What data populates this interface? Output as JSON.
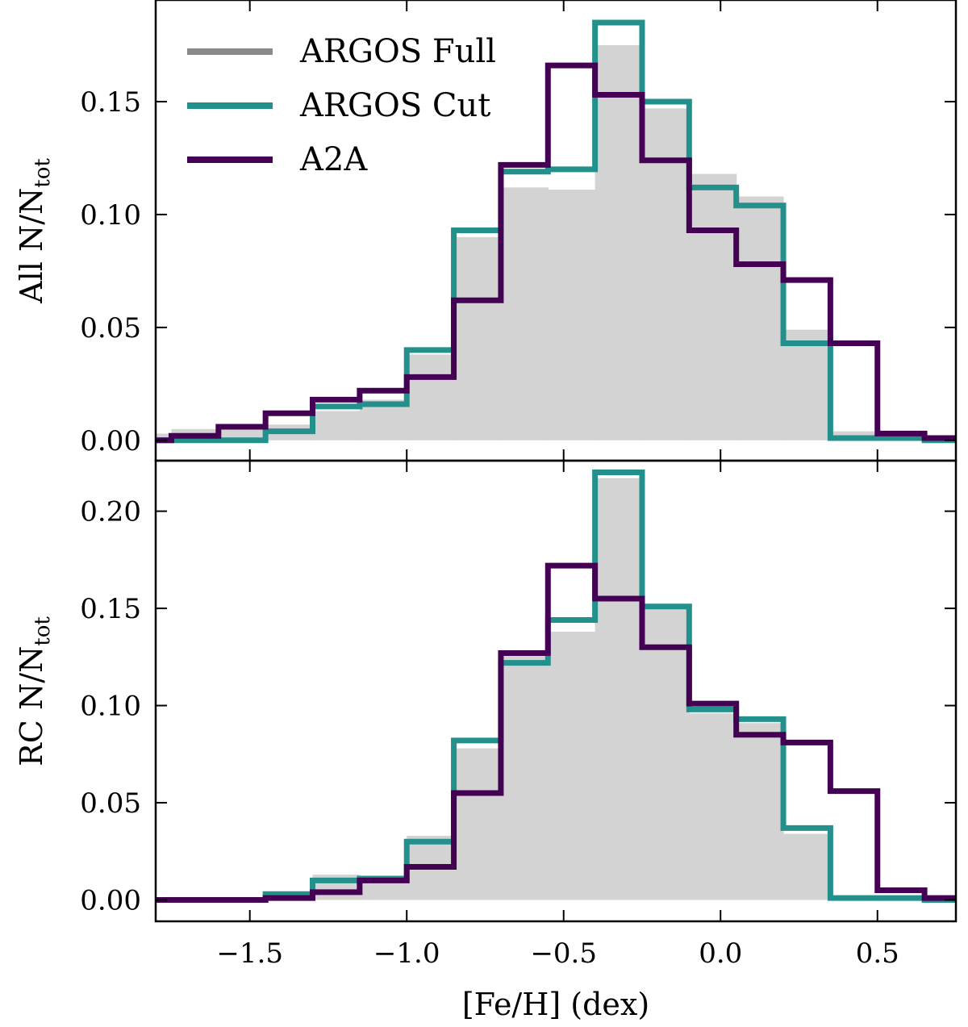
{
  "chart_data": {
    "type": "histogram",
    "xlabel": "[Fe/H] (dex)",
    "xlim": [
      -1.8,
      0.75
    ],
    "xticks": [
      -1.5,
      -1.0,
      -0.5,
      0.0,
      0.5
    ],
    "xtick_labels": [
      "−1.5",
      "−1.0",
      "−0.5",
      "0.0",
      "0.5"
    ],
    "bin_edges": [
      -1.8,
      -1.75,
      -1.6,
      -1.45,
      -1.3,
      -1.15,
      -1.0,
      -0.85,
      -0.7,
      -0.55,
      -0.4,
      -0.25,
      -0.1,
      0.05,
      0.2,
      0.35,
      0.5,
      0.65,
      0.75
    ],
    "legend": {
      "position": "top-left",
      "entries": [
        {
          "name": "ARGOS Full",
          "color": "#8a8a8a"
        },
        {
          "name": "ARGOS Cut",
          "color": "#23908c"
        },
        {
          "name": "A2A",
          "color": "#440154"
        }
      ]
    },
    "panels": [
      {
        "id": "all",
        "ylabel_main": "All N/N",
        "ylabel_sub": "tot",
        "ylim": [
          -0.009,
          0.195
        ],
        "yticks": [
          0.0,
          0.05,
          0.1,
          0.15
        ],
        "ytick_labels": [
          "0.00",
          "0.05",
          "0.10",
          "0.15"
        ],
        "series": [
          {
            "name": "ARGOS Full",
            "style": "fill",
            "color": "#d3d3d3",
            "values": [
              0.003,
              0.005,
              0.005,
              0.007,
              0.013,
              0.018,
              0.038,
              0.09,
              0.112,
              0.111,
              0.175,
              0.147,
              0.118,
              0.108,
              0.049,
              0.004,
              0.001,
              0.0
            ]
          },
          {
            "name": "ARGOS Cut",
            "style": "step",
            "color": "#23908c",
            "values": [
              0.0,
              0.0,
              0.0,
              0.004,
              0.015,
              0.016,
              0.04,
              0.093,
              0.119,
              0.12,
              0.185,
              0.15,
              0.112,
              0.104,
              0.043,
              0.001,
              0.001,
              0.0
            ]
          },
          {
            "name": "A2A",
            "style": "step",
            "color": "#440154",
            "values": [
              0.0,
              0.002,
              0.006,
              0.012,
              0.018,
              0.022,
              0.028,
              0.062,
              0.122,
              0.166,
              0.153,
              0.124,
              0.093,
              0.078,
              0.071,
              0.043,
              0.003,
              0.001
            ]
          }
        ]
      },
      {
        "id": "rc",
        "ylabel_main": "RC N/N",
        "ylabel_sub": "tot",
        "ylim": [
          -0.011,
          0.226
        ],
        "yticks": [
          0.0,
          0.05,
          0.1,
          0.15,
          0.2
        ],
        "ytick_labels": [
          "0.00",
          "0.05",
          "0.10",
          "0.15",
          "0.20"
        ],
        "series": [
          {
            "name": "ARGOS Full",
            "style": "fill",
            "color": "#d3d3d3",
            "values": [
              0.0,
              0.0,
              0.0,
              0.004,
              0.013,
              0.012,
              0.033,
              0.078,
              0.126,
              0.138,
              0.217,
              0.15,
              0.096,
              0.091,
              0.034,
              0.001,
              0.0,
              0.0
            ]
          },
          {
            "name": "ARGOS Cut",
            "style": "step",
            "color": "#23908c",
            "values": [
              0.0,
              0.0,
              0.0,
              0.003,
              0.01,
              0.011,
              0.03,
              0.082,
              0.122,
              0.144,
              0.22,
              0.151,
              0.098,
              0.093,
              0.037,
              0.001,
              0.001,
              0.0
            ]
          },
          {
            "name": "A2A",
            "style": "step",
            "color": "#440154",
            "values": [
              0.0,
              0.0,
              0.0,
              0.001,
              0.004,
              0.01,
              0.017,
              0.055,
              0.127,
              0.172,
              0.155,
              0.13,
              0.101,
              0.085,
              0.081,
              0.056,
              0.005,
              0.001
            ]
          }
        ]
      }
    ]
  }
}
